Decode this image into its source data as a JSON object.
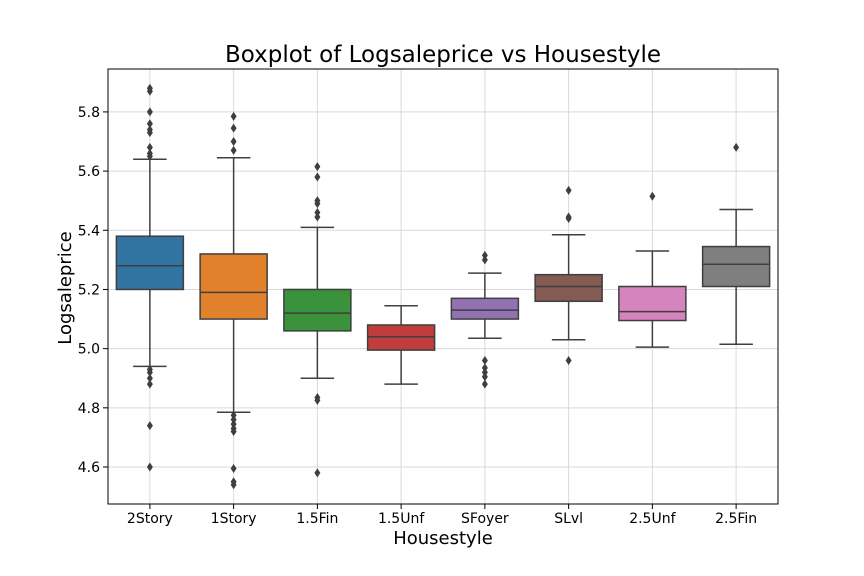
{
  "chart_data": {
    "type": "boxplot",
    "title": "Boxplot of Logsaleprice vs Housestyle",
    "xlabel": "Housestyle",
    "ylabel": "Logsaleprice",
    "ylim": [
      4.475,
      5.945
    ],
    "yticks": [
      "4.6",
      "4.8",
      "5.0",
      "5.2",
      "5.4",
      "5.6",
      "5.8"
    ],
    "grid": true,
    "categories": [
      "2Story",
      "1Story",
      "1.5Fin",
      "1.5Unf",
      "SFoyer",
      "SLvl",
      "2.5Unf",
      "2.5Fin"
    ],
    "colors": [
      "#3274a1",
      "#e1812c",
      "#3a923a",
      "#c03d3e",
      "#9372b2",
      "#845b53",
      "#d684bd",
      "#7f7f7f"
    ],
    "boxes": [
      {
        "category": "2Story",
        "q1": 5.2,
        "median": 5.28,
        "q3": 5.38,
        "whisker_low": 4.94,
        "whisker_high": 5.64,
        "outliers": [
          5.88,
          5.87,
          5.8,
          5.76,
          5.74,
          5.73,
          5.68,
          5.66,
          5.65,
          4.93,
          4.92,
          4.9,
          4.88,
          4.74,
          4.6
        ]
      },
      {
        "category": "1Story",
        "q1": 5.1,
        "median": 5.19,
        "q3": 5.32,
        "whisker_low": 4.785,
        "whisker_high": 5.645,
        "outliers": [
          5.785,
          5.745,
          5.7,
          5.67,
          4.775,
          4.76,
          4.745,
          4.73,
          4.72,
          4.595,
          4.55,
          4.54
        ]
      },
      {
        "category": "1.5Fin",
        "q1": 5.06,
        "median": 5.12,
        "q3": 5.2,
        "whisker_low": 4.9,
        "whisker_high": 5.41,
        "outliers": [
          5.615,
          5.58,
          5.5,
          5.49,
          5.46,
          5.445,
          4.835,
          4.825,
          4.58
        ]
      },
      {
        "category": "1.5Unf",
        "q1": 4.995,
        "median": 5.04,
        "q3": 5.08,
        "whisker_low": 4.88,
        "whisker_high": 5.145,
        "outliers": []
      },
      {
        "category": "SFoyer",
        "q1": 5.1,
        "median": 5.13,
        "q3": 5.17,
        "whisker_low": 5.035,
        "whisker_high": 5.255,
        "outliers": [
          5.315,
          5.3,
          4.96,
          4.935,
          4.92,
          4.905,
          4.88
        ]
      },
      {
        "category": "SLvl",
        "q1": 5.16,
        "median": 5.21,
        "q3": 5.25,
        "whisker_low": 5.03,
        "whisker_high": 5.385,
        "outliers": [
          5.535,
          5.445,
          5.44,
          4.96
        ]
      },
      {
        "category": "2.5Unf",
        "q1": 5.095,
        "median": 5.125,
        "q3": 5.21,
        "whisker_low": 5.005,
        "whisker_high": 5.33,
        "outliers": [
          5.515
        ]
      },
      {
        "category": "2.5Fin",
        "q1": 5.21,
        "median": 5.285,
        "q3": 5.345,
        "whisker_low": 5.015,
        "whisker_high": 5.47,
        "outliers": [
          5.68
        ]
      }
    ]
  }
}
